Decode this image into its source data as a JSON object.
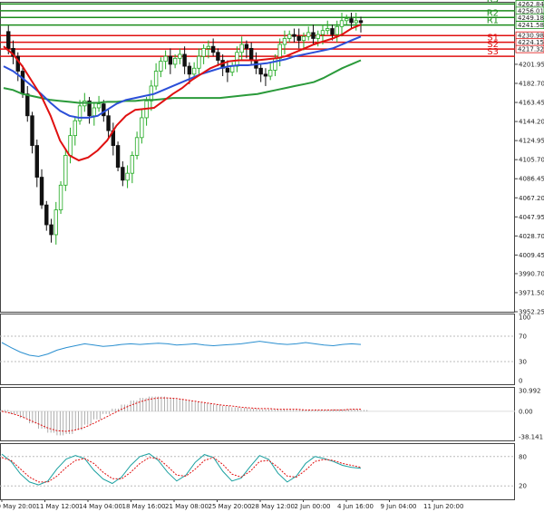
{
  "chart_data": {
    "type": "candlestick",
    "instrument_timeframe": "4H",
    "colors": {
      "bull": "#22aa22",
      "bear": "#111111",
      "ma_fast": "#e01010",
      "ma_mid": "#2b4fd8",
      "ma_slow": "#2a9a3a",
      "resistance": "#1a8c1a",
      "support": "#e01010",
      "rsi": "#2a8fd0",
      "macd_hist": "#9a9a9a",
      "macd_signal": "#e01010",
      "stoch_main": "#1aa0a0",
      "stoch_signal": "#e01010",
      "panel_border": "#444444"
    },
    "price_axis": {
      "ylim": [
        3952.25,
        4265.0
      ],
      "ticks": [
        "4201.95",
        "4182.70",
        "4163.45",
        "4144.20",
        "4124.95",
        "4105.70",
        "4086.45",
        "4067.20",
        "4047.95",
        "4028.70",
        "4009.45",
        "3990.70",
        "3971.50",
        "3952.25"
      ]
    },
    "levels": [
      {
        "label": "R3",
        "value": 4262.84,
        "tag": "4262.84",
        "kind": "resistance"
      },
      {
        "label": "",
        "value": 4256.01,
        "tag": "4256.01",
        "kind": "resistance"
      },
      {
        "label": "R2",
        "value": 4249.18,
        "tag": "4249.18",
        "kind": "resistance"
      },
      {
        "label": "R1",
        "value": 4241.58,
        "tag": "4241.58",
        "kind": "price"
      },
      {
        "label": "",
        "value": 4230.98,
        "tag": "4230.98",
        "kind": "support"
      },
      {
        "label": "S1",
        "value": 4224.15,
        "tag": "4224.15",
        "kind": "support"
      },
      {
        "label": "S2",
        "value": 4217.32,
        "tag": "4217.32",
        "kind": "support"
      },
      {
        "label": "S3",
        "value": 4210.0,
        "tag": "",
        "kind": "support"
      }
    ],
    "x_labels": [
      "10 May 20:00",
      "11 May 12:00",
      "14 May 04:00",
      "18 May 16:00",
      "21 May 08:00",
      "25 May 20:00",
      "28 May 12:00",
      "2 Jun 00:00",
      "4 Jun 16:00",
      "9 Jun 04:00",
      "11 Jun 20:00"
    ],
    "close_path": [
      4235,
      4218,
      4210,
      4195,
      4172,
      4150,
      4120,
      4088,
      4060,
      4040,
      4030,
      4055,
      4080,
      4110,
      4130,
      4145,
      4160,
      4165,
      4150,
      4158,
      4162,
      4150,
      4135,
      4120,
      4098,
      4085,
      4092,
      4110,
      4128,
      4148,
      4165,
      4180,
      4195,
      4205,
      4210,
      4202,
      4208,
      4212,
      4200,
      4192,
      4198,
      4210,
      4218,
      4220,
      4214,
      4206,
      4198,
      4194,
      4200,
      4214,
      4222,
      4218,
      4206,
      4198,
      4192,
      4190,
      4196,
      4208,
      4222,
      4228,
      4232,
      4230,
      4226,
      4230,
      4234,
      4228,
      4232,
      4236,
      4238,
      4232,
      4240,
      4246,
      4248,
      4244,
      4246,
      4244
    ],
    "ma_fast": [
      4220,
      4212,
      4200,
      4185,
      4170,
      4150,
      4125,
      4110,
      4105,
      4108,
      4115,
      4125,
      4140,
      4150,
      4156,
      4157,
      4158,
      4165,
      4172,
      4178,
      4186,
      4192,
      4198,
      4202,
      4205,
      4206,
      4206,
      4206,
      4207,
      4208,
      4210,
      4214,
      4218,
      4222,
      4225,
      4228,
      4232,
      4238,
      4242
    ],
    "ma_mid": [
      4200,
      4195,
      4188,
      4180,
      4172,
      4163,
      4155,
      4150,
      4148,
      4148,
      4150,
      4156,
      4162,
      4166,
      4168,
      4170,
      4172,
      4176,
      4180,
      4184,
      4188,
      4192,
      4195,
      4198,
      4200,
      4201,
      4201,
      4202,
      4203,
      4205,
      4207,
      4210,
      4212,
      4214,
      4216,
      4218,
      4222,
      4226,
      4230
    ],
    "ma_slow": [
      4178,
      4176,
      4172,
      4170,
      4168,
      4166,
      4165,
      4164,
      4163,
      4163,
      4163,
      4164,
      4164,
      4165,
      4165,
      4166,
      4166,
      4167,
      4168,
      4168,
      4168,
      4168,
      4168,
      4168,
      4169,
      4170,
      4171,
      4172,
      4174,
      4176,
      4178,
      4180,
      4182,
      4184,
      4188,
      4193,
      4198,
      4202,
      4206
    ],
    "rsi": {
      "ticks": [
        "100",
        "70",
        "30",
        "0"
      ],
      "ylim": [
        0,
        100
      ],
      "values": [
        60,
        52,
        45,
        40,
        38,
        42,
        48,
        52,
        55,
        58,
        56,
        54,
        55,
        57,
        58,
        57,
        58,
        59,
        58,
        56,
        57,
        58,
        56,
        55,
        56,
        57,
        58,
        60,
        62,
        60,
        58,
        57,
        58,
        60,
        58,
        56,
        55,
        57,
        58,
        57
      ]
    },
    "macd": {
      "ticks": [
        "30.992",
        "0.00",
        "-38.141"
      ],
      "ylim": [
        -38.141,
        30.992
      ],
      "hist": [
        2,
        -4,
        -10,
        -18,
        -26,
        -32,
        -36,
        -34,
        -28,
        -20,
        -12,
        -4,
        4,
        10,
        16,
        20,
        22,
        22,
        20,
        18,
        16,
        14,
        12,
        10,
        8,
        6,
        5,
        4,
        3,
        3,
        3,
        2,
        2,
        2,
        2,
        2,
        3,
        3,
        3,
        2
      ],
      "signal": [
        0,
        -3,
        -7,
        -13,
        -19,
        -25,
        -29,
        -30,
        -28,
        -24,
        -18,
        -11,
        -4,
        3,
        9,
        14,
        18,
        20,
        20,
        19,
        17,
        15,
        13,
        11,
        9,
        8,
        6,
        5,
        4,
        4,
        3,
        3,
        3,
        2,
        2,
        2,
        2,
        2,
        3,
        3
      ]
    },
    "stoch": {
      "ticks": [
        "80",
        "20"
      ],
      "ylim": [
        0,
        100
      ],
      "main": [
        85,
        70,
        45,
        28,
        22,
        30,
        55,
        75,
        82,
        76,
        52,
        34,
        25,
        38,
        62,
        80,
        86,
        72,
        48,
        30,
        42,
        68,
        84,
        78,
        50,
        30,
        36,
        60,
        82,
        74,
        46,
        28,
        40,
        66,
        80,
        76,
        70,
        62,
        58,
        56
      ],
      "signal": [
        78,
        72,
        55,
        38,
        28,
        28,
        40,
        58,
        72,
        76,
        66,
        48,
        35,
        34,
        48,
        66,
        78,
        76,
        60,
        42,
        40,
        54,
        72,
        78,
        64,
        44,
        38,
        50,
        70,
        72,
        58,
        40,
        38,
        52,
        70,
        74,
        72,
        66,
        62,
        58
      ]
    }
  }
}
